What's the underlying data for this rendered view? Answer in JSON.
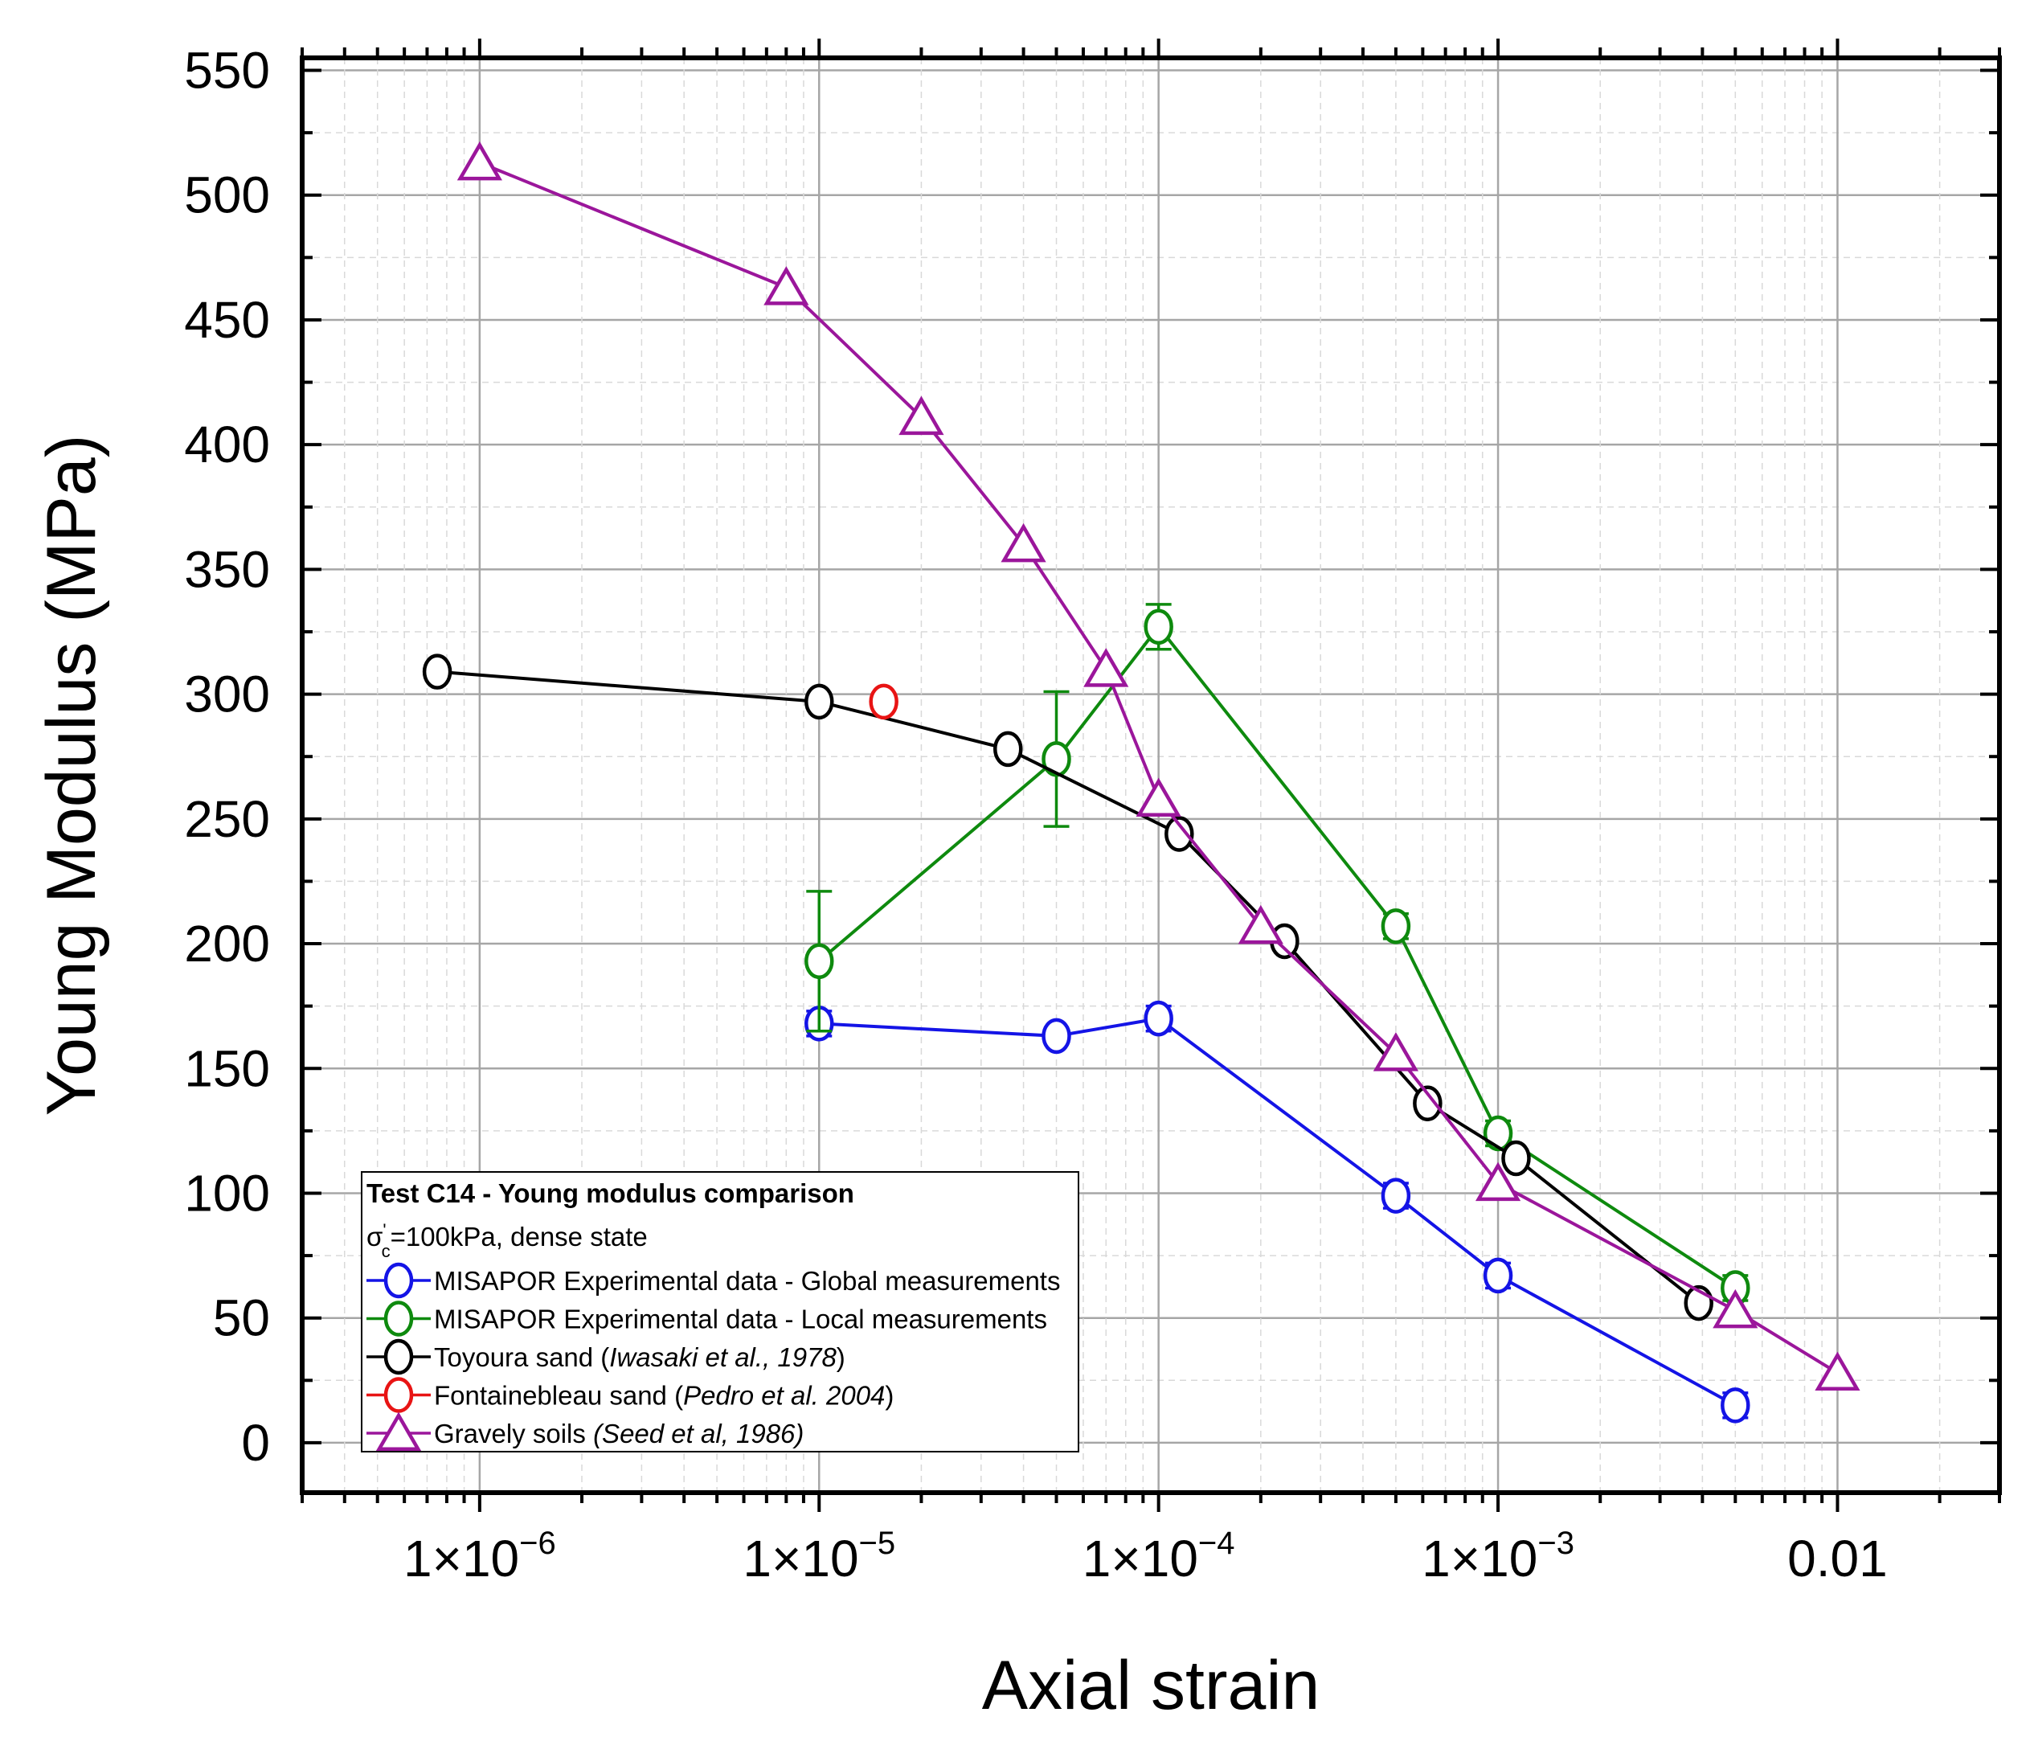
{
  "chart_data": {
    "type": "scatter",
    "xlabel": "Axial strain",
    "ylabel": "Young Modulus (MPa)",
    "x_scale": "log",
    "xlim": [
      3e-07,
      0.03
    ],
    "ylim": [
      -20,
      555
    ],
    "grid": true,
    "x_ticks": [
      {
        "value": 1e-06,
        "mant": "1×10",
        "exp": "−6"
      },
      {
        "value": 1e-05,
        "mant": "1×10",
        "exp": "−5"
      },
      {
        "value": 0.0001,
        "mant": "1×10",
        "exp": "−4"
      },
      {
        "value": 0.001,
        "mant": "1×10",
        "exp": "−3"
      },
      {
        "value": 0.01,
        "mant": "0.01",
        "exp": ""
      }
    ],
    "y_ticks": [
      "0",
      "50",
      "100",
      "150",
      "200",
      "250",
      "300",
      "350",
      "400",
      "450",
      "500",
      "550"
    ],
    "legend": {
      "position": "bottom-left",
      "title": "Test C14 - Young modulus comparison",
      "subtitle": {
        "pre": "σ",
        "sup": "'",
        "sub": "c",
        "post": "=100kPa, dense state"
      }
    },
    "series": [
      {
        "name": "MISAPOR Experimental data - Global measurements",
        "name_italic": "",
        "color": "#1414e6",
        "marker": "circle",
        "points": [
          [
            1e-05,
            168,
            5
          ],
          [
            5e-05,
            163,
            0
          ],
          [
            0.0001,
            170,
            5
          ],
          [
            0.0005,
            99,
            5
          ],
          [
            0.001,
            67,
            5
          ],
          [
            0.005,
            15,
            5
          ]
        ]
      },
      {
        "name": "MISAPOR Experimental data - Local measurements",
        "name_italic": "",
        "color": "#0e8a0e",
        "marker": "circle",
        "points": [
          [
            1e-05,
            193,
            28
          ],
          [
            5e-05,
            274,
            27
          ],
          [
            0.0001,
            327,
            9
          ],
          [
            0.0005,
            207,
            5
          ],
          [
            0.001,
            124,
            5
          ],
          [
            0.005,
            62,
            5
          ]
        ]
      },
      {
        "name": "Toyoura sand (",
        "name_italic": "Iwasaki et al., 1978",
        "name_after": ")",
        "color": "#000000",
        "marker": "circle",
        "points": [
          [
            7.5e-07,
            309,
            0
          ],
          [
            1e-05,
            297,
            0
          ],
          [
            3.6e-05,
            278,
            0
          ],
          [
            0.000115,
            244,
            0
          ],
          [
            0.000235,
            201,
            0
          ],
          [
            0.00062,
            136,
            0
          ],
          [
            0.00113,
            114,
            0
          ],
          [
            0.0039,
            56,
            0
          ]
        ]
      },
      {
        "name": "Fontainebleau sand (",
        "name_italic": "Pedro et al. 2004",
        "name_after": ")",
        "color": "#e81414",
        "marker": "circle",
        "points": [
          [
            1.55e-05,
            297,
            0
          ]
        ]
      },
      {
        "name": "Gravely soils ",
        "name_italic": "(Seed et al, 1986)",
        "name_after": "",
        "color": "#9b169b",
        "marker": "triangle",
        "points": [
          [
            1e-06,
            513,
            0
          ],
          [
            8e-06,
            463,
            0
          ],
          [
            2e-05,
            411,
            0
          ],
          [
            4e-05,
            360,
            0
          ],
          [
            7e-05,
            310,
            0
          ],
          [
            0.0001,
            258,
            0
          ],
          [
            0.0002,
            207,
            0
          ],
          [
            0.0005,
            156,
            0
          ],
          [
            0.001,
            104,
            0
          ],
          [
            0.005,
            53,
            0
          ],
          [
            0.01,
            28,
            0
          ]
        ]
      }
    ]
  }
}
